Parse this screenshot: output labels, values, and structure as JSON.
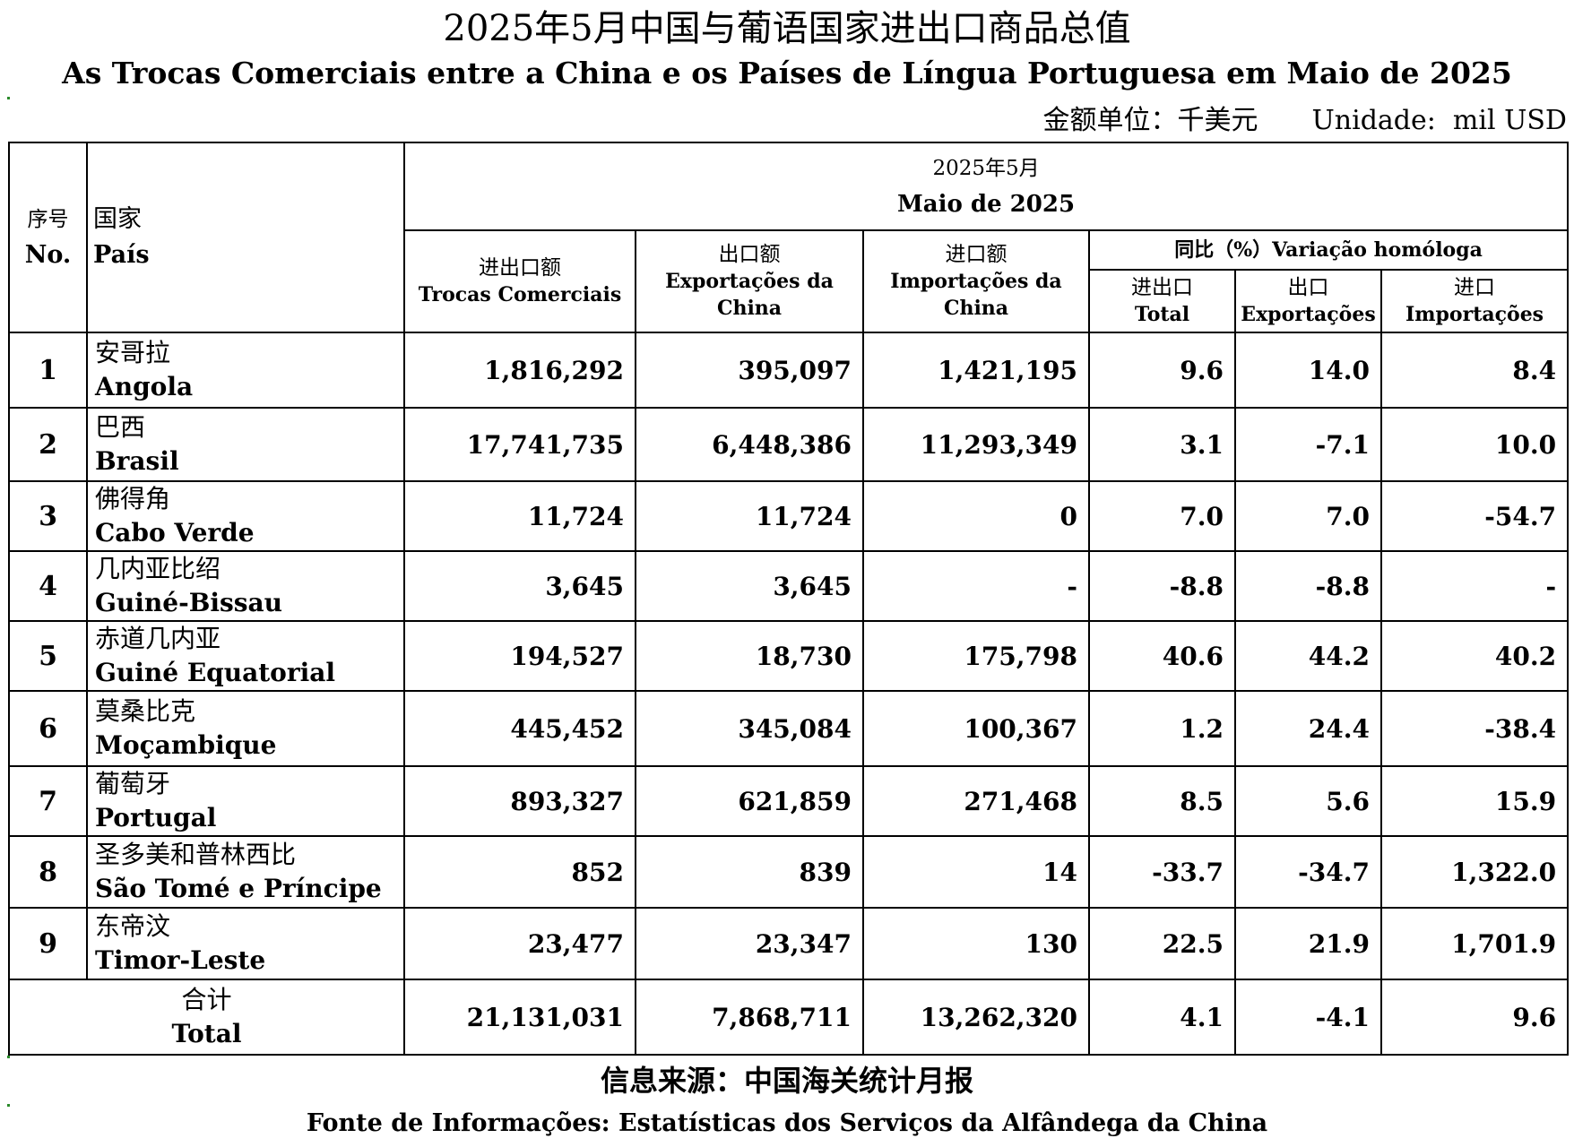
{
  "title_zh": "2025年5月中国与葡语国家进出口商品总值",
  "title_pt": "As Trocas Comerciais entre a China e os Países de Língua Portuguesa em Maio de 2025",
  "unit_zh": "金额单位：千美元",
  "unit_pt": "Unidade:  mil USD",
  "header": {
    "idx_zh": "序号",
    "idx_en": "No.",
    "country_zh": "国家",
    "country_pt": "País",
    "period_zh": "2025年5月",
    "period_pt": "Maio de 2025",
    "trade_zh": "进出口额",
    "trade_pt": "Trocas Comerciais",
    "export_zh": "出口额",
    "export_pt": "Exportações da China",
    "import_zh": "进口额",
    "import_pt": "Importações da China",
    "yoy_label": "同比（%）Variação homóloga",
    "yoy_total_zh": "进出口",
    "yoy_total_pt": "Total",
    "yoy_export_zh": "出口",
    "yoy_export_pt": "Exportações",
    "yoy_import_zh": "进口",
    "yoy_import_pt": "Importações"
  },
  "rows": [
    {
      "no": "1",
      "zh": "安哥拉",
      "pt": "Angola",
      "trade": "1,816,292",
      "export": "395,097",
      "import": "1,421,195",
      "yoy_total": "9.6",
      "yoy_export": "14.0",
      "yoy_import": "8.4"
    },
    {
      "no": "2",
      "zh": "巴西",
      "pt": "Brasil",
      "trade": "17,741,735",
      "export": "6,448,386",
      "import": "11,293,349",
      "yoy_total": "3.1",
      "yoy_export": "-7.1",
      "yoy_import": "10.0"
    },
    {
      "no": "3",
      "zh": "佛得角",
      "pt": "Cabo Verde",
      "trade": "11,724",
      "export": "11,724",
      "import": "0",
      "yoy_total": "7.0",
      "yoy_export": "7.0",
      "yoy_import": "-54.7"
    },
    {
      "no": "4",
      "zh": "几内亚比绍",
      "pt": "Guiné-Bissau",
      "trade": "3,645",
      "export": "3,645",
      "import": "-",
      "yoy_total": "-8.8",
      "yoy_export": "-8.8",
      "yoy_import": "-"
    },
    {
      "no": "5",
      "zh": "赤道几内亚",
      "pt": "Guiné Equatorial",
      "trade": "194,527",
      "export": "18,730",
      "import": "175,798",
      "yoy_total": "40.6",
      "yoy_export": "44.2",
      "yoy_import": "40.2"
    },
    {
      "no": "6",
      "zh": "莫桑比克",
      "pt": "Moçambique",
      "trade": "445,452",
      "export": "345,084",
      "import": "100,367",
      "yoy_total": "1.2",
      "yoy_export": "24.4",
      "yoy_import": "-38.4"
    },
    {
      "no": "7",
      "zh": "葡萄牙",
      "pt": "Portugal",
      "trade": "893,327",
      "export": "621,859",
      "import": "271,468",
      "yoy_total": "8.5",
      "yoy_export": "5.6",
      "yoy_import": "15.9"
    },
    {
      "no": "8",
      "zh": "圣多美和普林西比",
      "pt": "São Tomé e Príncipe",
      "trade": "852",
      "export": "839",
      "import": "14",
      "yoy_total": "-33.7",
      "yoy_export": "-34.7",
      "yoy_import": "1,322.0"
    },
    {
      "no": "9",
      "zh": "东帝汶",
      "pt": "Timor-Leste",
      "trade": "23,477",
      "export": "23,347",
      "import": "130",
      "yoy_total": "22.5",
      "yoy_export": "21.9",
      "yoy_import": "1,701.9"
    }
  ],
  "total": {
    "zh": "合计",
    "pt": "Total",
    "trade": "21,131,031",
    "export": "7,868,711",
    "import": "13,262,320",
    "yoy_total": "4.1",
    "yoy_export": "-4.1",
    "yoy_import": "9.6"
  },
  "source_zh": "信息来源：中国海关统计月报",
  "source_pt": "Fonte de Informações: Estatísticas dos Serviços da Alfândega da China"
}
